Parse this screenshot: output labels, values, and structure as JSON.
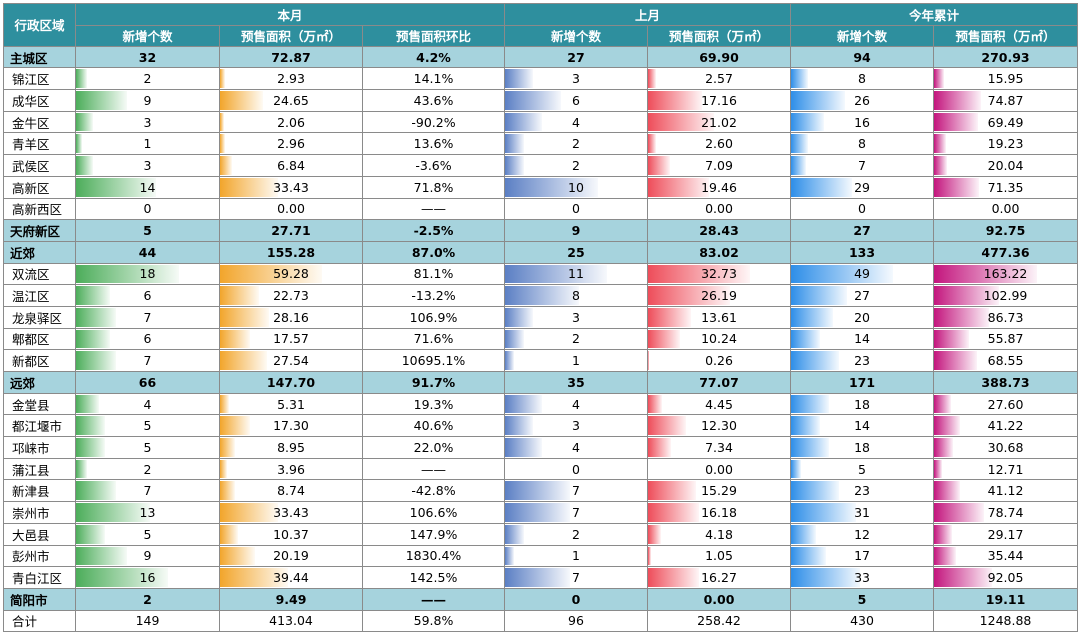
{
  "header": {
    "region_label": "行政区域",
    "groups": [
      "本月",
      "上月",
      "今年累计"
    ],
    "cols": [
      "新增个数",
      "预售面积（万㎡）",
      "预售面积环比",
      "新增个数",
      "预售面积（万㎡）",
      "新增个数",
      "预售面积（万㎡）"
    ]
  },
  "rows": [
    {
      "type": "group",
      "name": "主城区",
      "cells": [
        "32",
        "72.87",
        "4.2%",
        "27",
        "69.90",
        "94",
        "270.93"
      ]
    },
    {
      "type": "district",
      "name": "锦江区",
      "cells": [
        "2",
        "2.93",
        "14.1%",
        "3",
        "2.57",
        "8",
        "15.95"
      ]
    },
    {
      "type": "district",
      "name": "成华区",
      "cells": [
        "9",
        "24.65",
        "43.6%",
        "6",
        "17.16",
        "26",
        "74.87"
      ]
    },
    {
      "type": "district",
      "name": "金牛区",
      "cells": [
        "3",
        "2.06",
        "-90.2%",
        "4",
        "21.02",
        "16",
        "69.49"
      ]
    },
    {
      "type": "district",
      "name": "青羊区",
      "cells": [
        "1",
        "2.96",
        "13.6%",
        "2",
        "2.60",
        "8",
        "19.23"
      ]
    },
    {
      "type": "district",
      "name": "武侯区",
      "cells": [
        "3",
        "6.84",
        "-3.6%",
        "2",
        "7.09",
        "7",
        "20.04"
      ]
    },
    {
      "type": "district",
      "name": "高新区",
      "cells": [
        "14",
        "33.43",
        "71.8%",
        "10",
        "19.46",
        "29",
        "71.35"
      ]
    },
    {
      "type": "district",
      "name": "高新西区",
      "cells": [
        "0",
        "0.00",
        "——",
        "0",
        "0.00",
        "0",
        "0.00"
      ]
    },
    {
      "type": "group",
      "name": "天府新区",
      "cells": [
        "5",
        "27.71",
        "-2.5%",
        "9",
        "28.43",
        "27",
        "92.75"
      ]
    },
    {
      "type": "group",
      "name": "近郊",
      "cells": [
        "44",
        "155.28",
        "87.0%",
        "25",
        "83.02",
        "133",
        "477.36"
      ]
    },
    {
      "type": "district",
      "name": "双流区",
      "cells": [
        "18",
        "59.28",
        "81.1%",
        "11",
        "32.73",
        "49",
        "163.22"
      ]
    },
    {
      "type": "district",
      "name": "温江区",
      "cells": [
        "6",
        "22.73",
        "-13.2%",
        "8",
        "26.19",
        "27",
        "102.99"
      ]
    },
    {
      "type": "district",
      "name": "龙泉驿区",
      "cells": [
        "7",
        "28.16",
        "106.9%",
        "3",
        "13.61",
        "20",
        "86.73"
      ]
    },
    {
      "type": "district",
      "name": "郫都区",
      "cells": [
        "6",
        "17.57",
        "71.6%",
        "2",
        "10.24",
        "14",
        "55.87"
      ]
    },
    {
      "type": "district",
      "name": "新都区",
      "cells": [
        "7",
        "27.54",
        "10695.1%",
        "1",
        "0.26",
        "23",
        "68.55"
      ]
    },
    {
      "type": "group",
      "name": "远郊",
      "cells": [
        "66",
        "147.70",
        "91.7%",
        "35",
        "77.07",
        "171",
        "388.73"
      ]
    },
    {
      "type": "district",
      "name": "金堂县",
      "cells": [
        "4",
        "5.31",
        "19.3%",
        "4",
        "4.45",
        "18",
        "27.60"
      ]
    },
    {
      "type": "district",
      "name": "都江堰市",
      "cells": [
        "5",
        "17.30",
        "40.6%",
        "3",
        "12.30",
        "14",
        "41.22"
      ]
    },
    {
      "type": "district",
      "name": "邛崃市",
      "cells": [
        "5",
        "8.95",
        "22.0%",
        "4",
        "7.34",
        "18",
        "30.68"
      ]
    },
    {
      "type": "district",
      "name": "蒲江县",
      "cells": [
        "2",
        "3.96",
        "——",
        "0",
        "0.00",
        "5",
        "12.71"
      ]
    },
    {
      "type": "district",
      "name": "新津县",
      "cells": [
        "7",
        "8.74",
        "-42.8%",
        "7",
        "15.29",
        "23",
        "41.12"
      ]
    },
    {
      "type": "district",
      "name": "崇州市",
      "cells": [
        "13",
        "33.43",
        "106.6%",
        "7",
        "16.18",
        "31",
        "78.74"
      ]
    },
    {
      "type": "district",
      "name": "大邑县",
      "cells": [
        "5",
        "10.37",
        "147.9%",
        "2",
        "4.18",
        "12",
        "29.17"
      ]
    },
    {
      "type": "district",
      "name": "彭州市",
      "cells": [
        "9",
        "20.19",
        "1830.4%",
        "1",
        "1.05",
        "17",
        "35.44"
      ]
    },
    {
      "type": "district",
      "name": "青白江区",
      "cells": [
        "16",
        "39.44",
        "142.5%",
        "7",
        "16.27",
        "33",
        "92.05"
      ]
    },
    {
      "type": "group",
      "name": "简阳市",
      "cells": [
        "2",
        "9.49",
        "——",
        "0",
        "0.00",
        "5",
        "19.11"
      ]
    },
    {
      "type": "total",
      "name": "合计",
      "cells": [
        "149",
        "413.04",
        "59.8%",
        "96",
        "258.42",
        "430",
        "1248.88"
      ]
    }
  ],
  "bar_colors": {
    "this_month_count": "#4cad5a",
    "this_month_area": "#f2a52b",
    "last_month_count": "#5b7fc4",
    "last_month_area": "#ee4d5a",
    "ytd_count": "#2e8ee8",
    "ytd_area": "#c3157d"
  },
  "colors": {
    "header_bg": "#2e8f9e",
    "group_row_bg": "#a6d3dd"
  }
}
